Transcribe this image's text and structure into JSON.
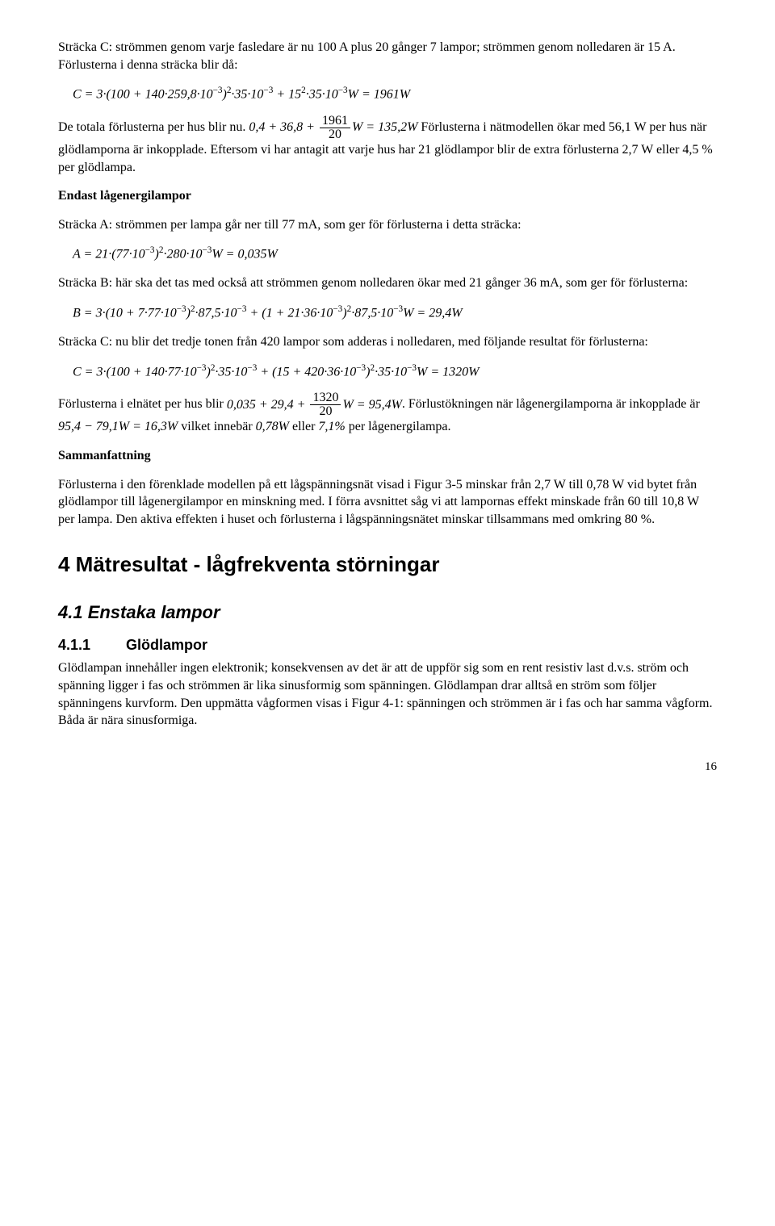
{
  "para1": "Sträcka C: strömmen genom varje fasledare är nu 100 A plus 20 gånger 7 lampor; strömmen genom nolledaren är 15 A. Förlusterna i denna sträcka blir då:",
  "eqC1_pre": "C = 3·(100 + 140·259,8·10",
  "eqC1_mid1": ")",
  "eqC1_mid2": "·35·10",
  "eqC1_mid3": " + 15",
  "eqC1_mid4": "·35·10",
  "eqC1_post": "W = 1961W",
  "para2_a": "De totala förlusterna per hus blir nu. ",
  "frac1_num": "1961",
  "frac1_den": "20",
  "eq2_pre": "0,4 + 36,8 + ",
  "eq2_post": "W = 135,2W",
  "para2_b": " Förlusterna i nätmodellen ökar med 56,1 W per hus när glödlamporna är inkopplade. Eftersom vi har antagit att varje hus har 21 glödlampor blir de extra förlusterna 2,7 W eller 4,5 % per glödlampa.",
  "h_endast": "Endast lågenergilampor",
  "para3": "Sträcka A: strömmen per lampa går ner till 77 mA, som ger för förlusterna i detta sträcka:",
  "eqA_pre": "A = 21·(77·10",
  "eqA_mid1": ")",
  "eqA_mid2": "·280·10",
  "eqA_post": "W = 0,035W",
  "para4": "Sträcka B: här ska det tas med också att strömmen genom nolledaren ökar med 21 gånger 36 mA, som ger för förlusterna:",
  "eqB_pre": "B = 3·(10 + 7·77·10",
  "eqB_m1": ")",
  "eqB_m2": "·87,5·10",
  "eqB_m3": " + (1 + 21·36·10",
  "eqB_m4": ")",
  "eqB_m5": "·87,5·10",
  "eqB_post": "W = 29,4W",
  "para5": "Sträcka C: nu blir det tredje tonen från 420 lampor som adderas i nolledaren, med följande resultat för förlusterna:",
  "eqC2_pre": "C = 3·(100 + 140·77·10",
  "eqC2_m1": ")",
  "eqC2_m2": "·35·10",
  "eqC2_m3": " + (15 + 420·36·10",
  "eqC2_m4": ")",
  "eqC2_m5": "·35·10",
  "eqC2_post": "W = 1320W",
  "para6_a": "Förlusterna i elnätet per hus blir ",
  "eq6_pre": "0,035 + 29,4 + ",
  "frac2_num": "1320",
  "frac2_den": "20",
  "eq6_post": "W = 95,4W",
  "para6_b": ". Förlustökningen när lågenergilamporna är inkopplade är ",
  "eq6b": "95,4 − 79,1W = 16,3W",
  "para6_c": " vilket innebär ",
  "eq6c": "0,78W",
  "para6_d": " eller ",
  "eq6d": "7,1%",
  "para6_e": " per lågenergilampa.",
  "h_samman": "Sammanfattning",
  "para7": "Förlusterna i den förenklade modellen på ett lågspänningsnät visad i Figur 3-5 minskar från 2,7 W till 0,78 W vid bytet från glödlampor till lågenergilampor en minskning med. I förra avsnittet såg vi att lampornas effekt minskade från 60 till 10,8 W per lampa. Den aktiva effekten i huset och förlusterna i lågspänningsnätet minskar tillsammans med omkring 80 %.",
  "sec4": "4   Mätresultat - lågfrekventa störningar",
  "sub41": "4.1  Enstaka lampor",
  "sub411_num": "4.1.1",
  "sub411_title": "Glödlampor",
  "para8": "Glödlampan innehåller ingen elektronik; konsekvensen av det är att de uppför sig som en rent resistiv last d.v.s. ström och spänning ligger i fas och strömmen är lika sinusformig som spänningen. Glödlampan drar alltså en ström som följer spänningens kurvform. Den uppmätta vågformen visas i Figur 4-1: spänningen och strömmen är i fas och har samma vågform. Båda är nära sinusformiga.",
  "page_num": "16",
  "sup_m3": "−3",
  "sup_2": "2"
}
